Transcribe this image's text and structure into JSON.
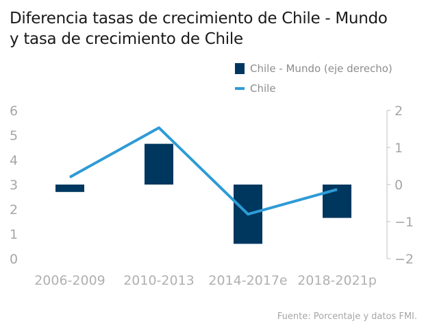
{
  "chart_data": {
    "type": "bar+line",
    "title_line1": "Diferencia tasas de crecimiento de Chile - Mundo",
    "title_line2": "y tasa de crecimiento de Chile",
    "categories": [
      "2006-2009",
      "2010-2013",
      "2014-2017e",
      "2018-2021p"
    ],
    "series": [
      {
        "name": "Chile - Mundo (eje derecho)",
        "type": "bar",
        "axis": "right",
        "color": "#00375f",
        "values": [
          -0.2,
          1.1,
          -1.6,
          -0.9
        ]
      },
      {
        "name": "Chile",
        "type": "line",
        "axis": "left",
        "color": "#2e9bd6",
        "values": [
          3.3,
          5.3,
          1.8,
          2.8
        ]
      }
    ],
    "left_axis": {
      "min": 0,
      "max": 6,
      "ticks": [
        "0",
        "1",
        "2",
        "3",
        "4",
        "5",
        "6"
      ]
    },
    "right_axis": {
      "min": -2,
      "max": 2,
      "ticks": [
        "−2",
        "−1",
        "0",
        "1",
        "2"
      ]
    },
    "source": "Fuente: Porcentaje y datos FMI."
  }
}
